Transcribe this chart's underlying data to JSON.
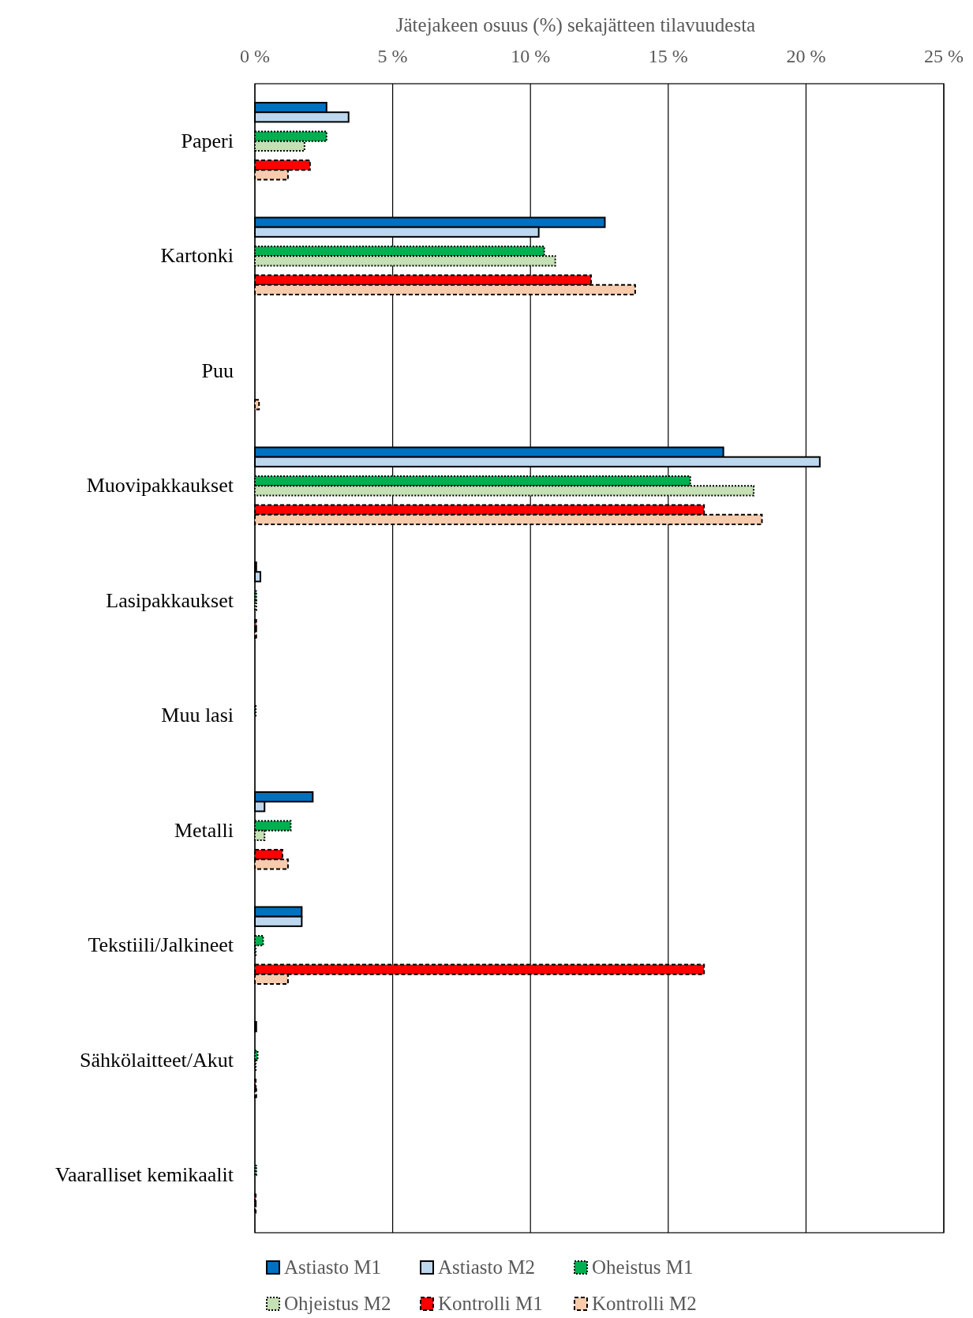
{
  "chart_data": {
    "type": "bar",
    "orientation": "horizontal",
    "xlabel": "Jätejakeen osuus (%) sekajätteen tilavuudesta",
    "categories": [
      "Paperi",
      "Kartonki",
      "Puu",
      "Muovipakkaukset",
      "Lasipakkaukset",
      "Muu lasi",
      "Metalli",
      "Tekstiili/Jalkineet",
      "Sähkölaitteet/Akut",
      "Vaaralliset kemikaalit"
    ],
    "series": [
      {
        "name": "Astiasto M1",
        "color": "#0070c0",
        "line_style": "solid",
        "values": [
          2.6,
          12.7,
          0,
          17.0,
          0.05,
          0,
          2.1,
          1.7,
          0.05,
          0
        ]
      },
      {
        "name": "Astiasto M2",
        "color": "#bdd7ee",
        "line_style": "solid",
        "values": [
          3.4,
          10.3,
          0,
          20.5,
          0.2,
          0,
          0.35,
          1.7,
          0,
          0
        ]
      },
      {
        "name": "Oheistus M1",
        "color": "#00b050",
        "line_style": "dotted",
        "values": [
          2.6,
          10.5,
          0,
          15.8,
          0.05,
          0.03,
          1.3,
          0.3,
          0.1,
          0.05
        ]
      },
      {
        "name": "Ohjeistus M2",
        "color": "#c5e0b4",
        "line_style": "dotted",
        "values": [
          1.8,
          10.9,
          0,
          18.1,
          0.05,
          0,
          0.35,
          0.03,
          0.03,
          0
        ]
      },
      {
        "name": "Kontrolli M1",
        "color": "#ff0000",
        "line_style": "dashed",
        "values": [
          2.0,
          12.2,
          0,
          16.3,
          0.05,
          0,
          1.0,
          16.3,
          0.03,
          0.03
        ]
      },
      {
        "name": "Kontrolli M2",
        "color": "#f8cbad",
        "line_style": "dashed",
        "values": [
          1.2,
          13.8,
          0.15,
          18.4,
          0.05,
          0,
          1.2,
          1.2,
          0.05,
          0.03
        ]
      }
    ],
    "xlim": [
      0,
      25
    ],
    "xticks": [
      {
        "value": 0,
        "label": "0 %"
      },
      {
        "value": 5,
        "label": "5 %"
      },
      {
        "value": 10,
        "label": "10 %"
      },
      {
        "value": 15,
        "label": "15 %"
      },
      {
        "value": 20,
        "label": "20 %"
      },
      {
        "value": 25,
        "label": "25 %"
      }
    ],
    "grid": "x",
    "legend": "bottom"
  }
}
